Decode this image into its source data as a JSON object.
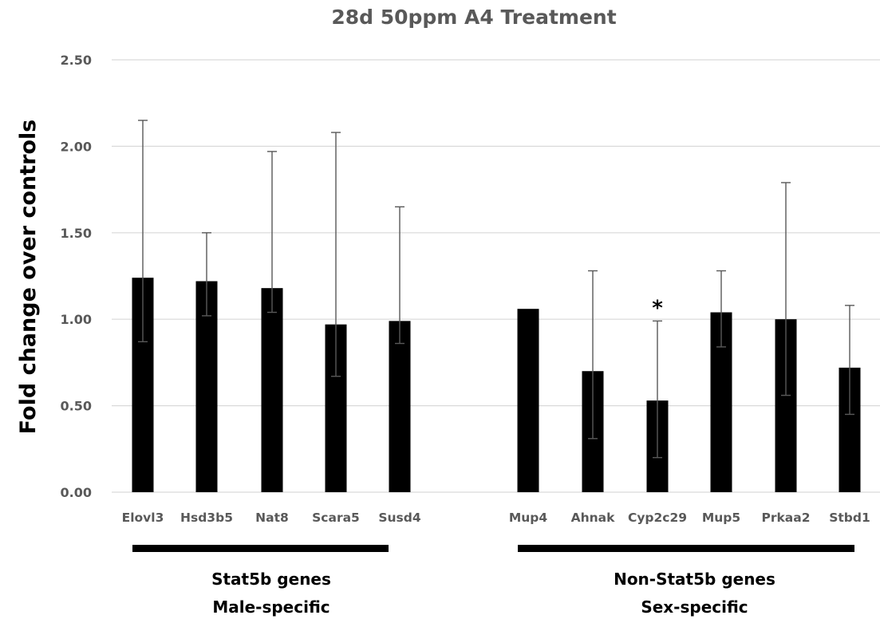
{
  "chart_data": {
    "type": "bar",
    "title": "28d 50ppm A4 Treatment",
    "ylabel": "Fold change over controls",
    "xlabel": "",
    "ylim": [
      0,
      2.5
    ],
    "yticks": [
      "0.00",
      "0.50",
      "1.00",
      "1.50",
      "2.00",
      "2.50"
    ],
    "grid": true,
    "bar_color": "#000000",
    "categories": [
      "Elovl3",
      "Hsd3b5",
      "Nat8",
      "Scara5",
      "Susd4",
      "Mup4",
      "Ahnak",
      "Cyp2c29",
      "Mup5",
      "Prkaa2",
      "Stbd1"
    ],
    "values": [
      1.24,
      1.22,
      1.18,
      0.97,
      0.99,
      1.06,
      0.7,
      0.53,
      1.04,
      1.0,
      0.72
    ],
    "error_bars": [
      [
        0.87,
        2.15
      ],
      [
        1.02,
        1.5
      ],
      [
        1.04,
        1.97
      ],
      [
        0.67,
        2.08
      ],
      [
        0.86,
        1.65
      ],
      null,
      [
        0.31,
        1.28
      ],
      [
        0.2,
        0.99
      ],
      [
        0.84,
        1.28
      ],
      [
        0.56,
        1.79
      ],
      [
        0.45,
        1.08
      ]
    ],
    "annotations": [
      {
        "category": "Cyp2c29",
        "text": "*"
      }
    ],
    "groups": [
      {
        "line1": "Stat5b genes",
        "line2": "Male-specific",
        "categories": [
          "Elovl3",
          "Hsd3b5",
          "Nat8",
          "Scara5",
          "Susd4"
        ]
      },
      {
        "line1": "Non-Stat5b genes",
        "line2": "Sex-specific",
        "categories": [
          "Mup4",
          "Ahnak",
          "Cyp2c29",
          "Mup5",
          "Prkaa2",
          "Stbd1"
        ]
      }
    ]
  }
}
